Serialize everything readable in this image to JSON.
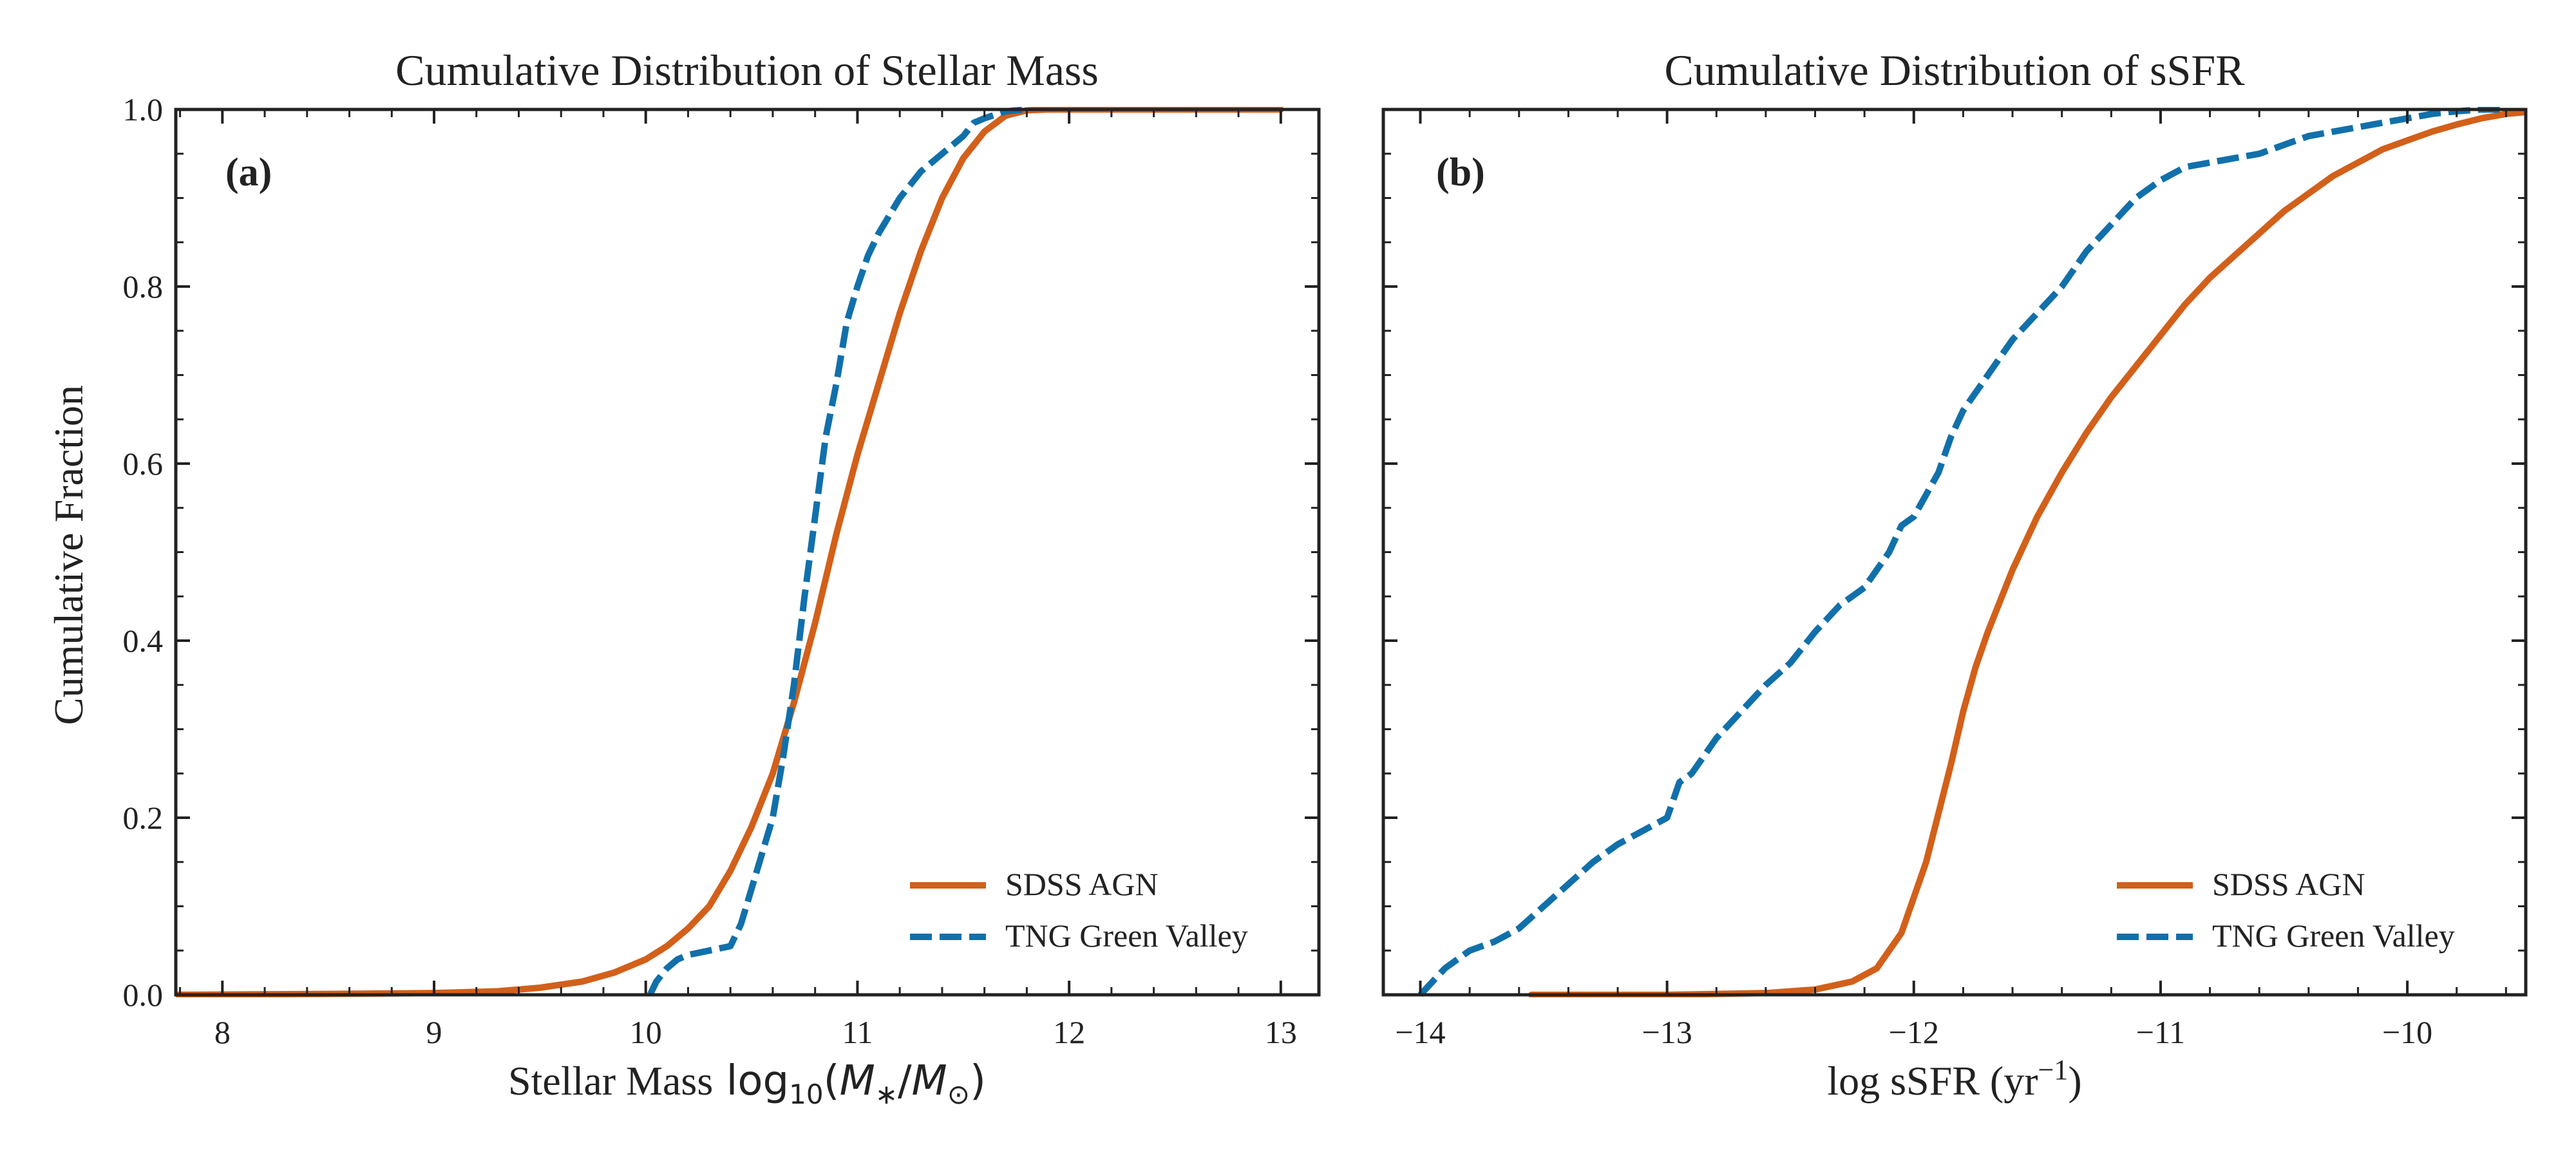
{
  "colors": {
    "sdss": "#D2601A",
    "tng": "#1170AA",
    "axis": "#222222"
  },
  "chart_data": [
    {
      "type": "line",
      "panel_label": "(a)",
      "title": "Cumulative Distribution of Stellar Mass",
      "xlabel": "Stellar Mass",
      "ylabel": "Cumulative Fraction",
      "xlim": [
        7.78,
        13.18
      ],
      "ylim": [
        0,
        1
      ],
      "xticks": [
        8,
        9,
        10,
        11,
        12,
        13
      ],
      "xtick_labels": [
        "8",
        "9",
        "10",
        "11",
        "12",
        "13"
      ],
      "yticks": [
        0,
        0.2,
        0.4,
        0.6,
        0.8,
        1.0
      ],
      "ytick_labels": [
        "0.0",
        "0.2",
        "0.4",
        "0.6",
        "0.8",
        "1.0"
      ],
      "legend_position": "lower right",
      "grid": false,
      "series": [
        {
          "name": "SDSS AGN",
          "style": "solid",
          "x": [
            7.78,
            8.5,
            9.0,
            9.3,
            9.5,
            9.7,
            9.85,
            10.0,
            10.1,
            10.2,
            10.3,
            10.4,
            10.5,
            10.6,
            10.7,
            10.8,
            10.9,
            11.0,
            11.1,
            11.2,
            11.3,
            11.4,
            11.5,
            11.6,
            11.7,
            11.8,
            11.9,
            12.0,
            12.5,
            13.0
          ],
          "y": [
            0.0,
            0.001,
            0.002,
            0.004,
            0.008,
            0.015,
            0.025,
            0.04,
            0.055,
            0.075,
            0.1,
            0.14,
            0.19,
            0.25,
            0.33,
            0.42,
            0.52,
            0.61,
            0.69,
            0.77,
            0.84,
            0.9,
            0.945,
            0.975,
            0.993,
            0.999,
            1.0,
            1.0,
            1.0,
            1.0
          ]
        },
        {
          "name": "TNG Green Valley",
          "style": "dashed",
          "x": [
            10.02,
            10.05,
            10.1,
            10.15,
            10.2,
            10.3,
            10.4,
            10.45,
            10.5,
            10.55,
            10.6,
            10.65,
            10.7,
            10.75,
            10.8,
            10.85,
            10.9,
            10.95,
            11.0,
            11.05,
            11.1,
            11.15,
            11.2,
            11.3,
            11.4,
            11.5,
            11.55,
            11.6,
            11.7,
            11.8
          ],
          "y": [
            0.0,
            0.015,
            0.03,
            0.04,
            0.045,
            0.05,
            0.055,
            0.08,
            0.12,
            0.16,
            0.2,
            0.27,
            0.35,
            0.45,
            0.54,
            0.63,
            0.69,
            0.76,
            0.8,
            0.835,
            0.86,
            0.88,
            0.9,
            0.93,
            0.95,
            0.97,
            0.985,
            0.99,
            0.998,
            1.0
          ]
        }
      ]
    },
    {
      "type": "line",
      "panel_label": "(b)",
      "title": "Cumulative Distribution of sSFR",
      "xlabel": "log sSFR (yr",
      "xlim": [
        -14.15,
        -9.52
      ],
      "ylim": [
        0,
        1
      ],
      "xticks": [
        -14,
        -13,
        -12,
        -11,
        -10
      ],
      "xtick_labels": [
        "−14",
        "−13",
        "−12",
        "−11",
        "−10"
      ],
      "yticks": [
        0,
        0.2,
        0.4,
        0.6,
        0.8,
        1.0
      ],
      "legend_position": "lower right",
      "grid": false,
      "series": [
        {
          "name": "SDSS AGN",
          "style": "solid",
          "x": [
            -13.55,
            -13.0,
            -12.6,
            -12.4,
            -12.25,
            -12.15,
            -12.05,
            -11.95,
            -11.85,
            -11.8,
            -11.75,
            -11.7,
            -11.6,
            -11.5,
            -11.4,
            -11.3,
            -11.2,
            -11.1,
            -11.0,
            -10.9,
            -10.8,
            -10.7,
            -10.6,
            -10.5,
            -10.4,
            -10.3,
            -10.2,
            -10.1,
            -10.0,
            -9.9,
            -9.8,
            -9.7,
            -9.6,
            -9.52
          ],
          "y": [
            0.0,
            0.0,
            0.002,
            0.006,
            0.015,
            0.03,
            0.07,
            0.15,
            0.26,
            0.32,
            0.37,
            0.41,
            0.48,
            0.54,
            0.59,
            0.635,
            0.675,
            0.71,
            0.745,
            0.78,
            0.81,
            0.835,
            0.86,
            0.885,
            0.905,
            0.925,
            0.94,
            0.955,
            0.965,
            0.975,
            0.983,
            0.99,
            0.995,
            0.997
          ]
        },
        {
          "name": "TNG Green Valley",
          "style": "dashed",
          "x": [
            -14.0,
            -13.95,
            -13.9,
            -13.8,
            -13.7,
            -13.6,
            -13.5,
            -13.4,
            -13.3,
            -13.2,
            -13.1,
            -13.0,
            -12.95,
            -12.9,
            -12.8,
            -12.7,
            -12.6,
            -12.5,
            -12.4,
            -12.3,
            -12.2,
            -12.1,
            -12.05,
            -12.0,
            -11.9,
            -11.85,
            -11.8,
            -11.7,
            -11.6,
            -11.5,
            -11.4,
            -11.3,
            -11.2,
            -11.1,
            -11.0,
            -10.9,
            -10.8,
            -10.7,
            -10.6,
            -10.5,
            -10.4,
            -10.3,
            -10.2,
            -10.1,
            -10.0,
            -9.9,
            -9.8,
            -9.7,
            -9.6
          ],
          "y": [
            0.0,
            0.015,
            0.03,
            0.05,
            0.06,
            0.075,
            0.1,
            0.125,
            0.15,
            0.17,
            0.185,
            0.2,
            0.24,
            0.25,
            0.29,
            0.32,
            0.35,
            0.375,
            0.41,
            0.44,
            0.46,
            0.5,
            0.53,
            0.54,
            0.59,
            0.63,
            0.66,
            0.7,
            0.74,
            0.77,
            0.8,
            0.84,
            0.87,
            0.9,
            0.92,
            0.935,
            0.94,
            0.945,
            0.95,
            0.96,
            0.97,
            0.975,
            0.98,
            0.985,
            0.99,
            0.995,
            0.998,
            1.0,
            1.0
          ]
        }
      ]
    }
  ]
}
